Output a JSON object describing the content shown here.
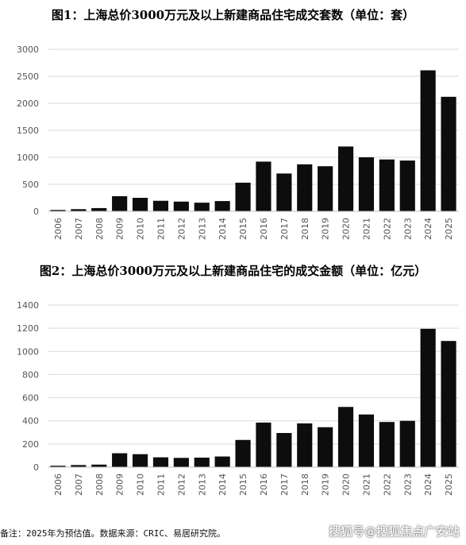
{
  "chart_data": [
    {
      "type": "bar",
      "title": "图1：上海总价3000万元及以上新建商品住宅成交套数（单位：套）",
      "categories": [
        "2006",
        "2007",
        "2008",
        "2009",
        "2010",
        "2011",
        "2012",
        "2013",
        "2014",
        "2015",
        "2016",
        "2017",
        "2018",
        "2019",
        "2020",
        "2021",
        "2022",
        "2023",
        "2024",
        "2025"
      ],
      "values": [
        25,
        40,
        60,
        280,
        250,
        195,
        180,
        160,
        190,
        530,
        920,
        700,
        870,
        835,
        1200,
        1000,
        960,
        940,
        2610,
        2120
      ],
      "ylim": [
        0,
        3000
      ],
      "yticks": [
        0,
        500,
        1000,
        1500,
        2000,
        2500,
        3000
      ],
      "grid": true,
      "color": "#0d0d0d"
    },
    {
      "type": "bar",
      "title": "图2：上海总价3000万元及以上新建商品住宅的成交金额（单位：亿元）",
      "categories": [
        "2006",
        "2007",
        "2008",
        "2009",
        "2010",
        "2011",
        "2012",
        "2013",
        "2014",
        "2015",
        "2016",
        "2017",
        "2018",
        "2019",
        "2020",
        "2021",
        "2022",
        "2023",
        "2024",
        "2025"
      ],
      "values": [
        12,
        18,
        22,
        120,
        112,
        85,
        80,
        82,
        92,
        235,
        385,
        295,
        378,
        345,
        520,
        455,
        390,
        400,
        1195,
        1090
      ],
      "ylim": [
        0,
        1400
      ],
      "yticks": [
        0,
        200,
        400,
        600,
        800,
        1000,
        1200,
        1400
      ],
      "grid": true,
      "color": "#0d0d0d"
    }
  ],
  "footer": {
    "note": "备注：2025年为预估值。数据来源：CRIC、易居研究院。",
    "watermark": "搜狐号@搜狐焦点广安站"
  }
}
